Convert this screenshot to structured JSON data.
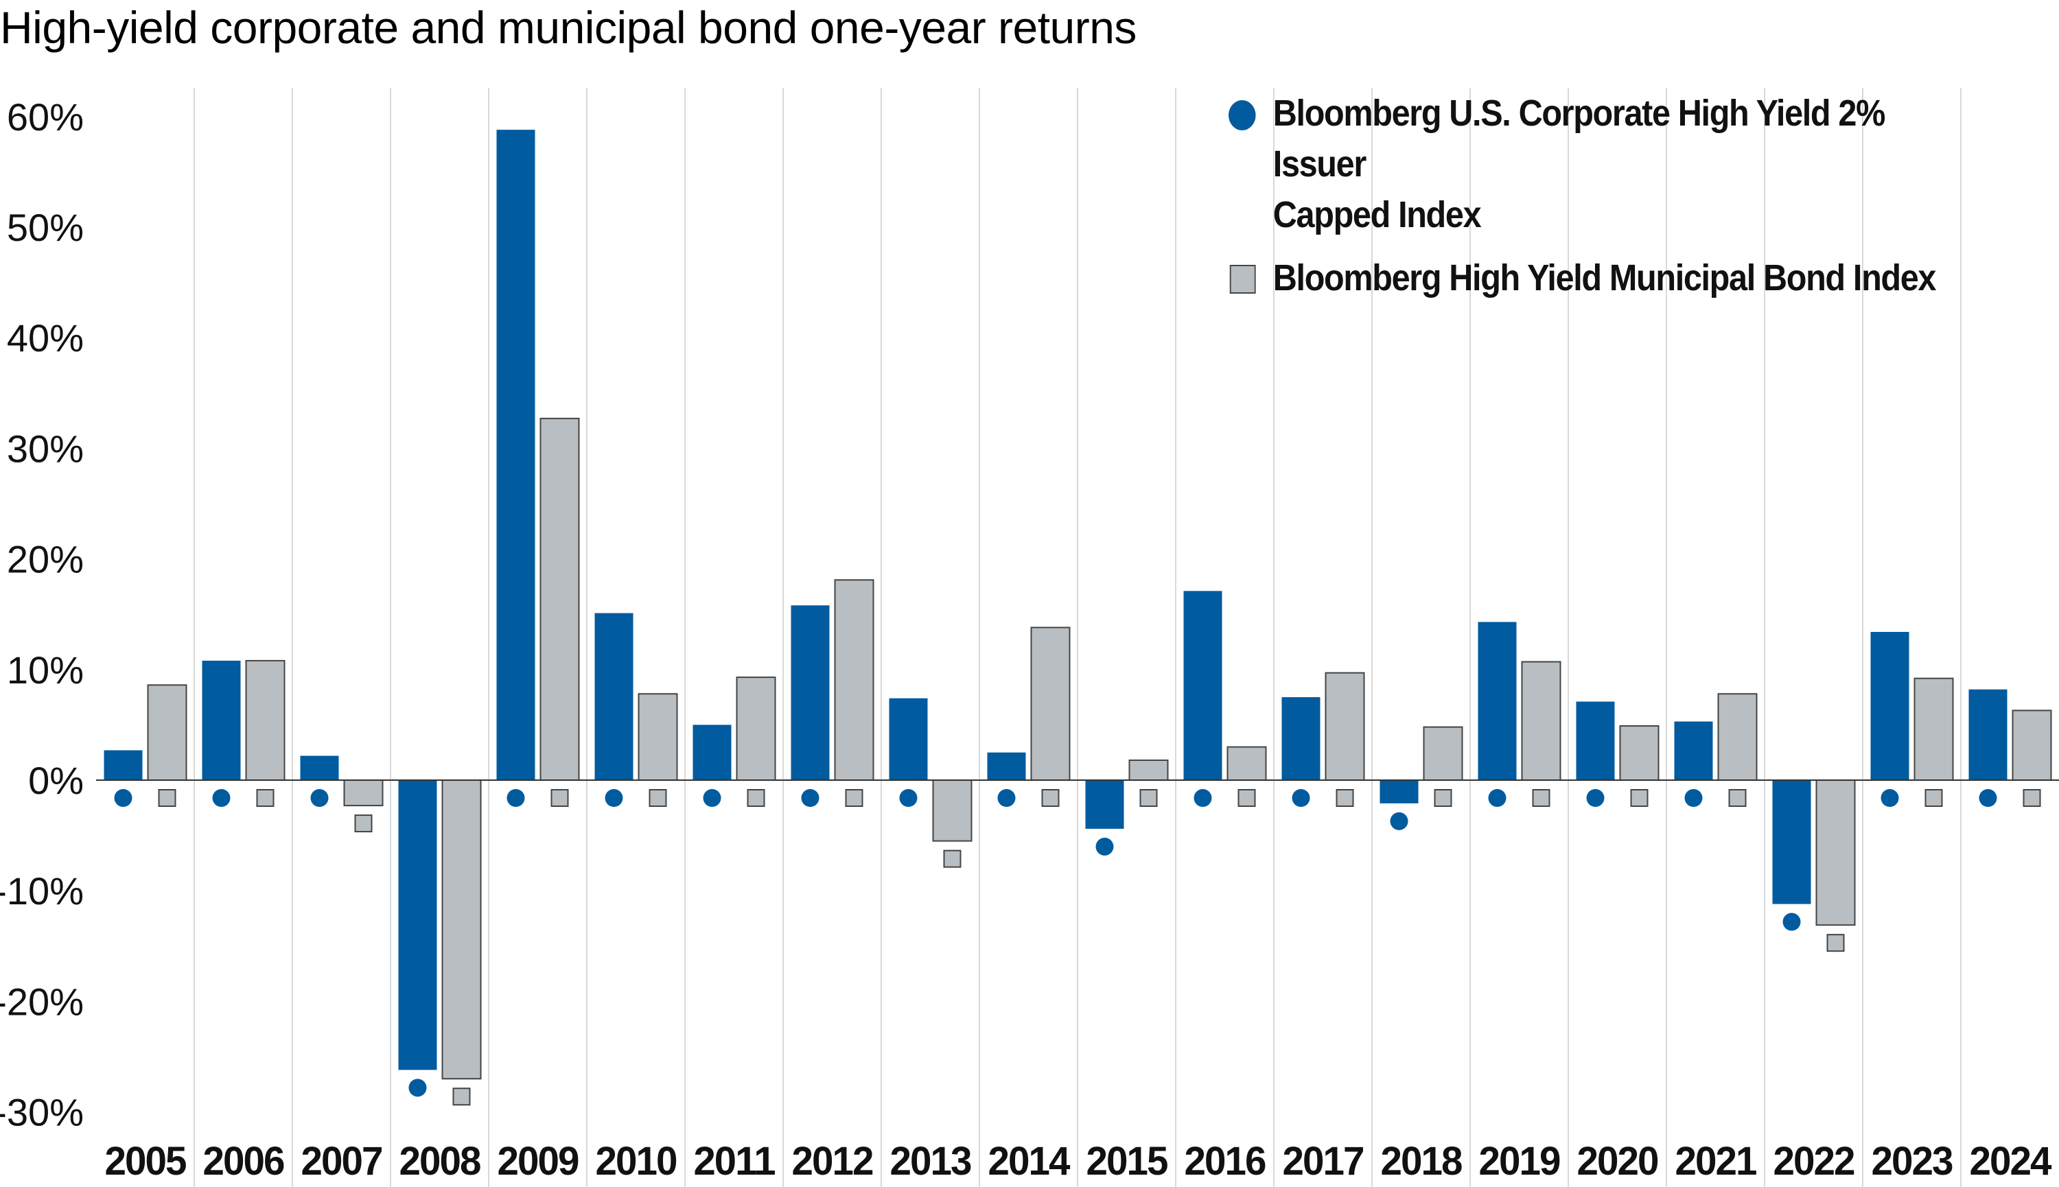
{
  "title": "High-yield corporate and municipal bond one-year returns",
  "colors": {
    "corporate": "#005b9f",
    "municipal": "#b9bec2",
    "municipal_border": "#444444",
    "grid": "#d9d9d9",
    "zero_line": "#333333",
    "text": "#111111"
  },
  "chart_data": {
    "type": "bar",
    "title": "High-yield corporate and municipal bond one-year returns",
    "categories": [
      "2005",
      "2006",
      "2007",
      "2008",
      "2009",
      "2010",
      "2011",
      "2012",
      "2013",
      "2014",
      "2015",
      "2016",
      "2017",
      "2018",
      "2019",
      "2020",
      "2021",
      "2022",
      "2023",
      "2024"
    ],
    "series": [
      {
        "name": "Bloomberg U.S. Corporate High Yield 2% Issuer Capped Index",
        "marker": "circle",
        "values": [
          2.7,
          10.8,
          2.2,
          -26.2,
          58.8,
          15.1,
          5.0,
          15.8,
          7.4,
          2.5,
          -4.4,
          17.1,
          7.5,
          -2.1,
          14.3,
          7.1,
          5.3,
          -11.2,
          13.4,
          8.2
        ]
      },
      {
        "name": "Bloomberg High Yield Municipal Bond Index",
        "marker": "square",
        "values": [
          8.6,
          10.8,
          -2.3,
          -27.0,
          32.7,
          7.8,
          9.3,
          18.1,
          -5.5,
          13.8,
          1.8,
          3.0,
          9.7,
          4.8,
          10.7,
          4.9,
          7.8,
          -13.1,
          9.2,
          6.3
        ]
      }
    ],
    "y_ticks": [
      "60%",
      "50%",
      "40%",
      "30%",
      "20%",
      "10%",
      "0%",
      "-10%",
      "-20%",
      "-30%"
    ],
    "ylim": [
      -30,
      60
    ],
    "grid": "vertical separators between years",
    "legend_position": "top-right"
  },
  "legend": {
    "corporate_line1": "Bloomberg U.S. Corporate High Yield 2% Issuer",
    "corporate_line2": "Capped Index",
    "municipal": "Bloomberg High Yield Municipal Bond Index"
  }
}
